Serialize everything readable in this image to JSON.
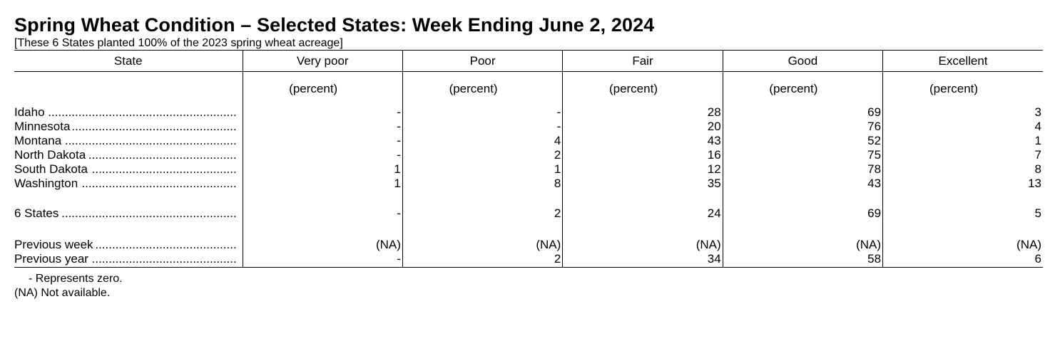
{
  "report": {
    "title": "Spring Wheat Condition – Selected States: Week Ending June 2, 2024",
    "subtitle": "[These 6 States planted 100% of the 2023 spring wheat acreage]"
  },
  "table": {
    "headers": [
      "State",
      "Very poor",
      "Poor",
      "Fair",
      "Good",
      "Excellent"
    ],
    "units": [
      "(percent)",
      "(percent)",
      "(percent)",
      "(percent)",
      "(percent)"
    ],
    "states": [
      {
        "name": "Idaho",
        "values": [
          "-",
          "-",
          "28",
          "69",
          "3"
        ]
      },
      {
        "name": "Minnesota",
        "values": [
          "-",
          "-",
          "20",
          "76",
          "4"
        ]
      },
      {
        "name": "Montana",
        "values": [
          "-",
          "4",
          "43",
          "52",
          "1"
        ]
      },
      {
        "name": "North Dakota",
        "values": [
          "-",
          "2",
          "16",
          "75",
          "7"
        ]
      },
      {
        "name": "South Dakota",
        "values": [
          "1",
          "1",
          "12",
          "78",
          "8"
        ]
      },
      {
        "name": "Washington",
        "values": [
          "1",
          "8",
          "35",
          "43",
          "13"
        ]
      }
    ],
    "total": {
      "name": "6 States",
      "values": [
        "-",
        "2",
        "24",
        "69",
        "5"
      ]
    },
    "comparisons": [
      {
        "name": "Previous week",
        "values": [
          "(NA)",
          "(NA)",
          "(NA)",
          "(NA)",
          "(NA)"
        ]
      },
      {
        "name": "Previous year",
        "values": [
          "-",
          "2",
          "34",
          "58",
          "6"
        ]
      }
    ]
  },
  "notes": {
    "zero": "- Represents zero.",
    "na": "(NA) Not available."
  }
}
